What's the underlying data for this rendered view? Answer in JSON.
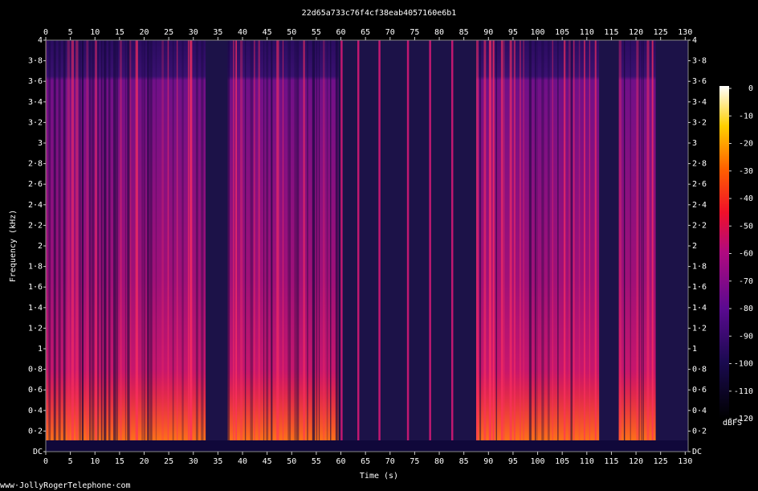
{
  "chart_data": {
    "type": "spectrogram",
    "title": "22d65a733c76f4cf38eab4057160e6b1",
    "xlabel": "Time (s)",
    "ylabel": "Frequency (kHz)",
    "footer": "www·JollyRogerTelephone·com",
    "xlim": [
      0,
      130.6
    ],
    "xticks": [
      0,
      5,
      10,
      15,
      20,
      25,
      30,
      35,
      40,
      45,
      50,
      55,
      60,
      65,
      70,
      75,
      80,
      85,
      90,
      95,
      100,
      105,
      110,
      115,
      120,
      125,
      130
    ],
    "ylim": [
      0,
      4
    ],
    "yticks": [
      {
        "value": 0,
        "label": "DC"
      },
      {
        "value": 0.2,
        "label": "0·2"
      },
      {
        "value": 0.4,
        "label": "0·4"
      },
      {
        "value": 0.6,
        "label": "0·6"
      },
      {
        "value": 0.8,
        "label": "0·8"
      },
      1,
      {
        "value": 1.2,
        "label": "1·2"
      },
      {
        "value": 1.4,
        "label": "1·4"
      },
      {
        "value": 1.6,
        "label": "1·6"
      },
      {
        "value": 1.8,
        "label": "1·8"
      },
      2,
      {
        "value": 2.2,
        "label": "2·2"
      },
      {
        "value": 2.4,
        "label": "2·4"
      },
      {
        "value": 2.6,
        "label": "2·6"
      },
      {
        "value": 2.8,
        "label": "2·8"
      },
      3,
      {
        "value": 3.2,
        "label": "3·2"
      },
      {
        "value": 3.4,
        "label": "3·4"
      },
      {
        "value": 3.6,
        "label": "3·6"
      },
      {
        "value": 3.8,
        "label": "3·8"
      },
      4
    ],
    "colorbar_label": "dBFS",
    "clim": [
      -120,
      0
    ],
    "cticks": [
      0,
      -10,
      -20,
      -30,
      -40,
      -50,
      -60,
      -70,
      -80,
      -90,
      -100,
      -110,
      -120
    ],
    "active": [
      [
        0,
        32.5
      ],
      [
        37,
        59.5
      ],
      [
        87.5,
        112.5
      ],
      [
        116.5,
        124
      ]
    ],
    "tones": [
      60.1,
      63.5,
      67.8,
      73.6,
      78.1,
      82.6
    ]
  }
}
